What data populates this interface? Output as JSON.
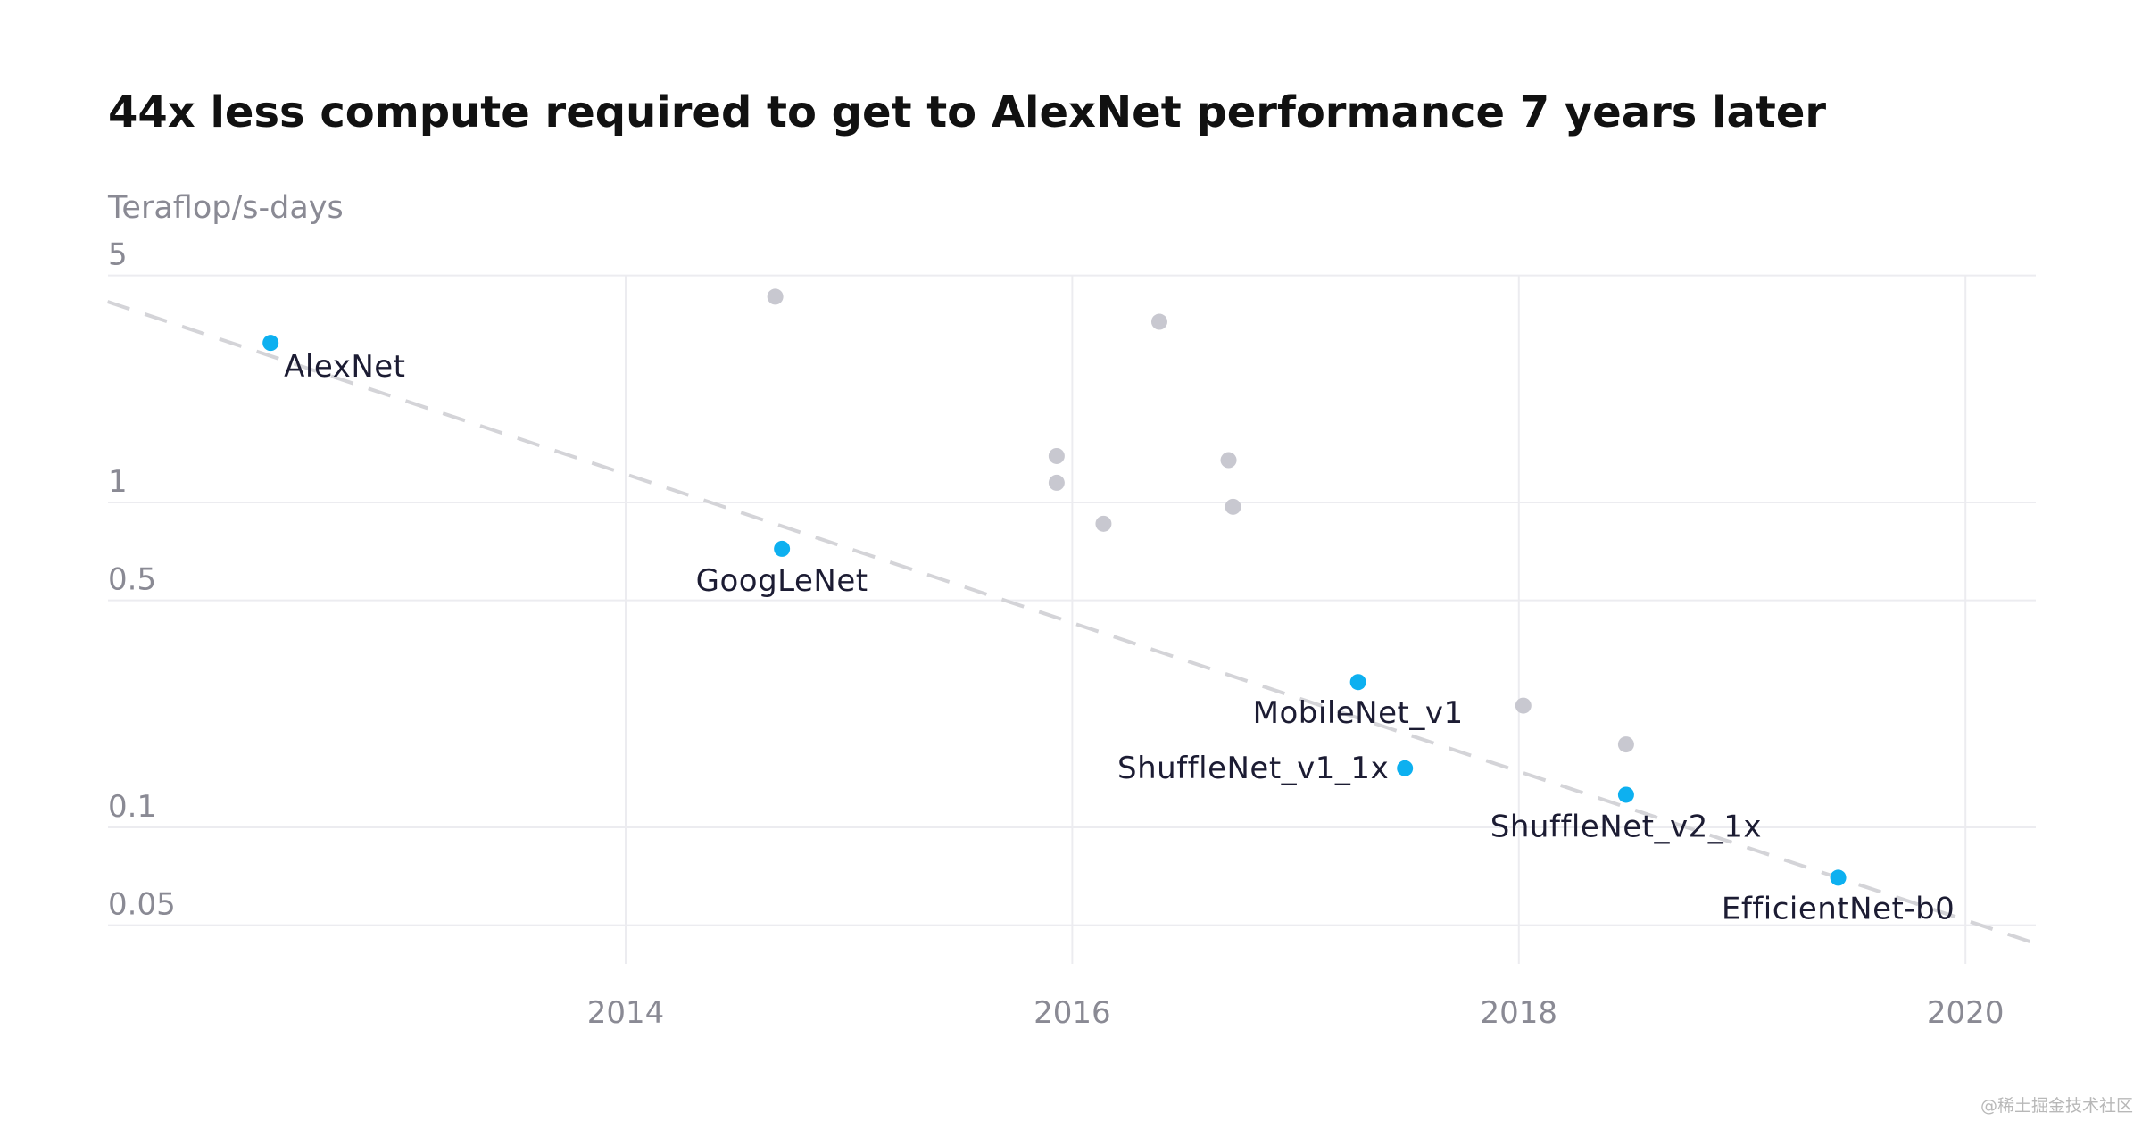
{
  "chart_data": {
    "type": "scatter",
    "title": "44x less compute required to get to AlexNet performance 7 years later",
    "ylabel": "Teraflop/s-days",
    "xlabel": "",
    "yscale": "log",
    "xlim": [
      2011.68,
      2020.31
    ],
    "ylim": [
      0.035,
      5
    ],
    "grid": true,
    "yticks": [
      {
        "value": 5,
        "label": "5"
      },
      {
        "value": 1,
        "label": "1"
      },
      {
        "value": 0.5,
        "label": "0.5"
      },
      {
        "value": 0.1,
        "label": "0.1"
      },
      {
        "value": 0.05,
        "label": "0.05"
      }
    ],
    "xticks": [
      {
        "value": 2014,
        "label": "2014"
      },
      {
        "value": 2016,
        "label": "2016"
      },
      {
        "value": 2018,
        "label": "2018"
      },
      {
        "value": 2020,
        "label": "2020"
      }
    ],
    "highlight_color": "#0db0f0",
    "other_color": "#c8c8d0",
    "trend_color": "#d4d4d8",
    "highlighted": [
      {
        "name": "AlexNet",
        "x": 2012.41,
        "y": 3.1
      },
      {
        "name": "GoogLeNet",
        "x": 2014.7,
        "y": 0.72
      },
      {
        "name": "MobileNet_v1",
        "x": 2017.28,
        "y": 0.28
      },
      {
        "name": "ShuffleNet_v1_1x",
        "x": 2017.49,
        "y": 0.152
      },
      {
        "name": "ShuffleNet_v2_1x",
        "x": 2018.48,
        "y": 0.126
      },
      {
        "name": "EfficientNet-b0",
        "x": 2019.43,
        "y": 0.07
      }
    ],
    "others": [
      {
        "x": 2014.67,
        "y": 4.3
      },
      {
        "x": 2016.39,
        "y": 3.6
      },
      {
        "x": 2015.93,
        "y": 1.39
      },
      {
        "x": 2015.93,
        "y": 1.15
      },
      {
        "x": 2016.14,
        "y": 0.86
      },
      {
        "x": 2016.7,
        "y": 1.35
      },
      {
        "x": 2016.72,
        "y": 0.97
      },
      {
        "x": 2018.02,
        "y": 0.237
      },
      {
        "x": 2018.48,
        "y": 0.18
      }
    ],
    "trendline": {
      "style": "dashed",
      "points": [
        {
          "x": 2011.68,
          "y": 4.15
        },
        {
          "x": 2020.31,
          "y": 0.044
        }
      ]
    }
  },
  "watermark": "@稀土掘金技术社区"
}
